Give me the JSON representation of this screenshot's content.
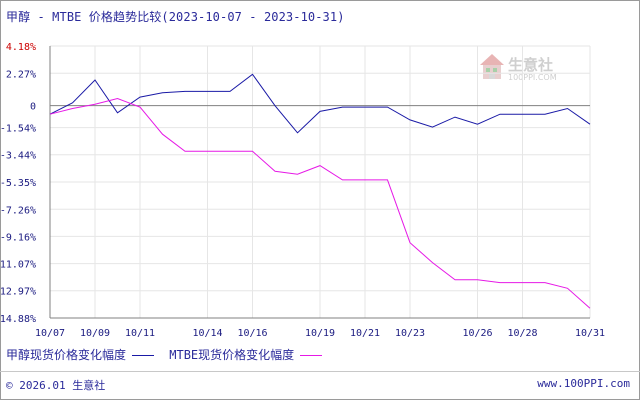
{
  "title": "甲醇 - MTBE 价格趋势比较(2023-10-07 - 2023-10-31)",
  "watermark": {
    "name": "生意社",
    "url": "100PPI.COM"
  },
  "legend": [
    {
      "label": "甲醇现货价格变化幅度",
      "color": "#1a1aa6"
    },
    {
      "label": "MTBE现货价格变化幅度",
      "color": "#e619e6"
    }
  ],
  "footer": {
    "left": "© 2026.01 生意社",
    "right": "www.100PPI.com"
  },
  "colors": {
    "axis": "#808080",
    "zero_line": "#808080",
    "tick_text": "#1a1a80",
    "top_tick_text": "#cc0000",
    "grid": "#e6e6e6"
  },
  "chart_data": {
    "type": "line",
    "title": "甲醇 - MTBE 价格趋势比较(2023-10-07 - 2023-10-31)",
    "x": [
      "10/07",
      "10/08",
      "10/09",
      "10/10",
      "10/11",
      "10/12",
      "10/13",
      "10/14",
      "10/15",
      "10/16",
      "10/17",
      "10/18",
      "10/19",
      "10/20",
      "10/21",
      "10/22",
      "10/23",
      "10/24",
      "10/25",
      "10/26",
      "10/27",
      "10/28",
      "10/29",
      "10/30",
      "10/31"
    ],
    "x_tick_labels": [
      "10/07",
      "10/09",
      "10/11",
      "10/14",
      "10/16",
      "10/19",
      "10/21",
      "10/23",
      "10/26",
      "10/28",
      "10/31"
    ],
    "x_tick_indices": [
      0,
      2,
      4,
      7,
      9,
      12,
      14,
      16,
      19,
      21,
      24
    ],
    "y_tick_labels": [
      "4.18%",
      "2.27%",
      "0",
      "-1.54%",
      "-3.44%",
      "-5.35%",
      "-7.26%",
      "-9.16%",
      "-11.07%",
      "-12.97%",
      "-14.88%"
    ],
    "y_tick_values": [
      4.18,
      2.27,
      0,
      -1.54,
      -3.44,
      -5.35,
      -7.26,
      -9.16,
      -11.07,
      -12.97,
      -14.88
    ],
    "ylim": [
      -14.88,
      4.18
    ],
    "series": [
      {
        "name": "甲醇现货价格变化幅度",
        "color": "#1a1aa6",
        "values": [
          -0.6,
          0.2,
          1.8,
          -0.5,
          0.6,
          0.9,
          1.0,
          1.0,
          1.0,
          2.2,
          0.0,
          -1.9,
          -0.4,
          -0.1,
          -0.1,
          -0.1,
          -1.0,
          -1.5,
          -0.8,
          -1.3,
          -0.6,
          -0.6,
          -0.6,
          -0.2,
          -1.3
        ]
      },
      {
        "name": "MTBE现货价格变化幅度",
        "color": "#e619e6",
        "values": [
          -0.6,
          -0.2,
          0.1,
          0.5,
          -0.1,
          -2.0,
          -3.2,
          -3.2,
          -3.2,
          -3.2,
          -4.6,
          -4.8,
          -4.2,
          -5.2,
          -5.2,
          -5.2,
          -9.6,
          -11.0,
          -12.2,
          -12.2,
          -12.4,
          -12.4,
          -12.4,
          -12.8,
          -14.2
        ]
      }
    ],
    "grid": true,
    "legend_position": "bottom-left"
  }
}
